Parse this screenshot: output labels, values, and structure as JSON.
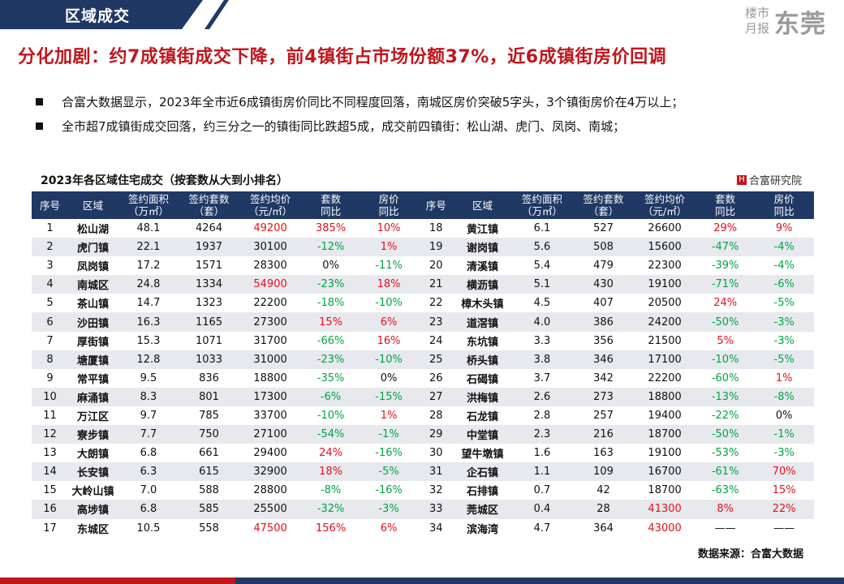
{
  "header": {
    "section_title": "区域成交"
  },
  "logo": {
    "line1": "楼市",
    "line2": "月报",
    "city": "东莞"
  },
  "headline": "分化加剧：约7成镇街成交下降，前4镇街占市场份额37%，近6成镇街房价回调",
  "bullets": [
    "合富大数据显示，2023年全市近6成镇街房价同比不同程度回落，南城区房价突破5字头，3个镇街房价在4万以上；",
    "全市超7成镇街成交回落，约三分之一的镇街同比跌超5成，成交前四镇街：松山湖、虎门、凤岗、南城；"
  ],
  "table": {
    "title": "2023年各区域住宅成交（按套数从大到小排名）",
    "brand": "合富研究院",
    "brand_mark": "H",
    "headers": [
      "序号",
      "区域",
      "签约面积\n（万㎡）",
      "签约套数\n（套）",
      "签约均价\n（元/㎡）",
      "套数\n同比",
      "房价\n同比"
    ],
    "left_rows": [
      [
        "1",
        "松山湖",
        "48.1",
        "4264",
        "49200",
        "385%",
        "10%"
      ],
      [
        "2",
        "虎门镇",
        "22.1",
        "1937",
        "30100",
        "-12%",
        "1%"
      ],
      [
        "3",
        "凤岗镇",
        "17.2",
        "1571",
        "28300",
        "0%",
        "-11%"
      ],
      [
        "4",
        "南城区",
        "24.8",
        "1334",
        "54900",
        "-23%",
        "18%"
      ],
      [
        "5",
        "茶山镇",
        "14.7",
        "1323",
        "22200",
        "-18%",
        "-10%"
      ],
      [
        "6",
        "沙田镇",
        "16.3",
        "1165",
        "27300",
        "15%",
        "6%"
      ],
      [
        "7",
        "厚街镇",
        "15.3",
        "1071",
        "31700",
        "-66%",
        "16%"
      ],
      [
        "8",
        "塘厦镇",
        "12.8",
        "1033",
        "31000",
        "-23%",
        "-10%"
      ],
      [
        "9",
        "常平镇",
        "9.5",
        "836",
        "18800",
        "-35%",
        "0%"
      ],
      [
        "10",
        "麻涌镇",
        "8.3",
        "801",
        "17300",
        "-6%",
        "-15%"
      ],
      [
        "11",
        "万江区",
        "9.7",
        "785",
        "33700",
        "-10%",
        "1%"
      ],
      [
        "12",
        "寮步镇",
        "7.7",
        "750",
        "27100",
        "-54%",
        "-1%"
      ],
      [
        "13",
        "大朗镇",
        "6.8",
        "661",
        "29400",
        "24%",
        "-16%"
      ],
      [
        "14",
        "长安镇",
        "6.3",
        "615",
        "32900",
        "18%",
        "-5%"
      ],
      [
        "15",
        "大岭山镇",
        "7.0",
        "588",
        "28800",
        "-8%",
        "-16%"
      ],
      [
        "16",
        "高埗镇",
        "6.8",
        "585",
        "25500",
        "-32%",
        "-3%"
      ],
      [
        "17",
        "东城区",
        "10.5",
        "558",
        "47500",
        "156%",
        "6%"
      ]
    ],
    "right_rows": [
      [
        "18",
        "黄江镇",
        "6.1",
        "527",
        "26600",
        "29%",
        "9%"
      ],
      [
        "19",
        "谢岗镇",
        "5.6",
        "508",
        "15600",
        "-47%",
        "-4%"
      ],
      [
        "20",
        "清溪镇",
        "5.4",
        "479",
        "22300",
        "-39%",
        "-4%"
      ],
      [
        "21",
        "横沥镇",
        "5.1",
        "430",
        "19100",
        "-71%",
        "-6%"
      ],
      [
        "22",
        "樟木头镇",
        "4.5",
        "407",
        "20500",
        "24%",
        "-5%"
      ],
      [
        "23",
        "道滘镇",
        "4.0",
        "386",
        "24200",
        "-50%",
        "-3%"
      ],
      [
        "24",
        "东坑镇",
        "3.3",
        "356",
        "21500",
        "5%",
        "-3%"
      ],
      [
        "25",
        "桥头镇",
        "3.8",
        "346",
        "17100",
        "-10%",
        "-5%"
      ],
      [
        "26",
        "石碣镇",
        "3.7",
        "342",
        "22200",
        "-60%",
        "1%"
      ],
      [
        "27",
        "洪梅镇",
        "2.6",
        "273",
        "18800",
        "-13%",
        "-8%"
      ],
      [
        "28",
        "石龙镇",
        "2.8",
        "257",
        "19400",
        "-22%",
        "0%"
      ],
      [
        "29",
        "中堂镇",
        "2.3",
        "216",
        "18700",
        "-50%",
        "-1%"
      ],
      [
        "30",
        "望牛墩镇",
        "1.6",
        "163",
        "19100",
        "-53%",
        "-3%"
      ],
      [
        "31",
        "企石镇",
        "1.1",
        "109",
        "16700",
        "-61%",
        "70%"
      ],
      [
        "32",
        "石排镇",
        "0.7",
        "42",
        "18700",
        "-63%",
        "15%"
      ],
      [
        "33",
        "莞城区",
        "0.4",
        "28",
        "41300",
        "8%",
        "22%"
      ],
      [
        "34",
        "滨海湾",
        "4.7",
        "364",
        "43000",
        "——",
        "——"
      ]
    ],
    "source": "数据来源：合富大数据"
  },
  "colors": {
    "navy": "#1f3864",
    "red": "#c0161c",
    "increase": "#e5101b",
    "decrease": "#00a544",
    "zebra": "#e7e9ee"
  }
}
